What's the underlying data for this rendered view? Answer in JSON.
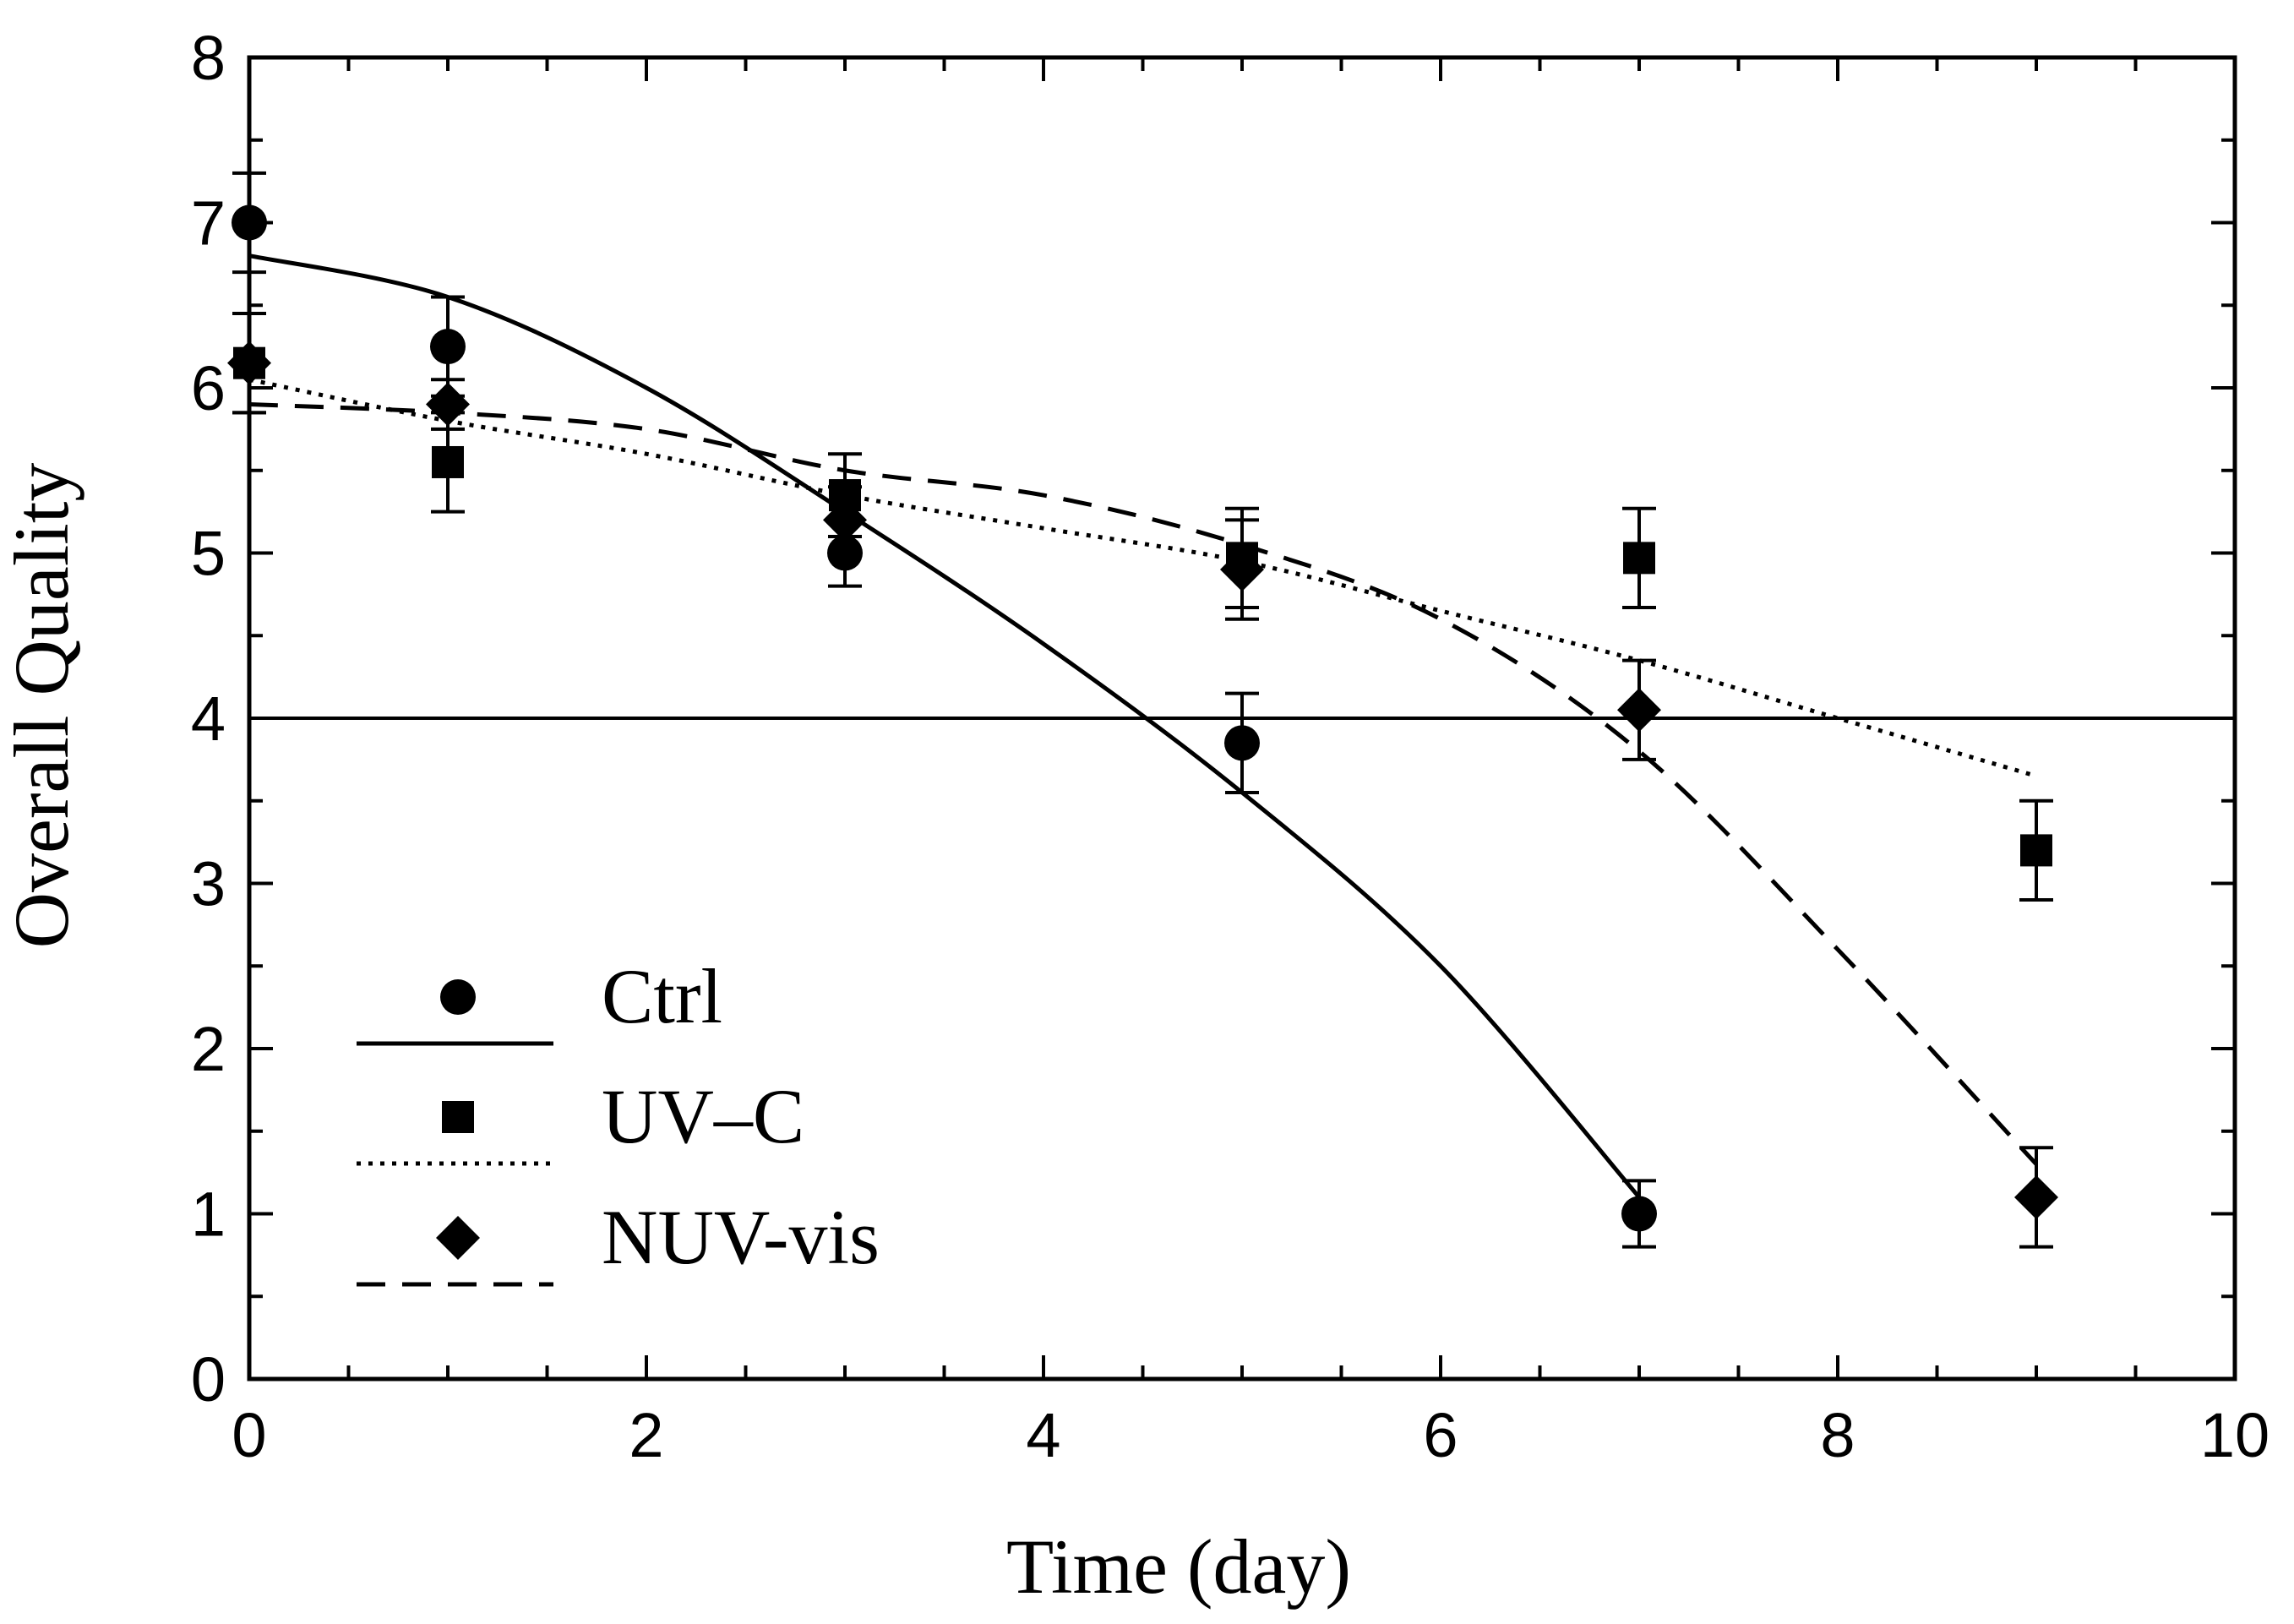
{
  "chart_data": {
    "type": "scatter",
    "xlabel": "Time (day)",
    "ylabel": "Overall Quality",
    "xlim": [
      0,
      10
    ],
    "ylim": [
      0,
      8
    ],
    "xticks": [
      0,
      2,
      4,
      6,
      8,
      10
    ],
    "yticks": [
      0,
      1,
      2,
      3,
      4,
      5,
      6,
      7,
      8
    ],
    "grid": false,
    "legend_position": "bottom-left",
    "reference_line": {
      "y": 4
    },
    "series": [
      {
        "name": "Ctrl",
        "marker": "circle",
        "line_style": "solid",
        "points": [
          {
            "x": 0,
            "y": 7.0,
            "err": 0.3
          },
          {
            "x": 1,
            "y": 6.25,
            "err": 0.3
          },
          {
            "x": 3,
            "y": 5.0,
            "err": 0.2
          },
          {
            "x": 5,
            "y": 3.85,
            "err": 0.3
          },
          {
            "x": 7,
            "y": 1.0,
            "err": 0.2
          }
        ],
        "fit": [
          [
            0,
            6.8
          ],
          [
            1,
            6.55
          ],
          [
            2,
            6.0
          ],
          [
            3,
            5.25
          ],
          [
            4,
            4.45
          ],
          [
            5,
            3.55
          ],
          [
            6,
            2.5
          ],
          [
            7,
            1.1
          ]
        ]
      },
      {
        "name": "UV–C",
        "marker": "square",
        "line_style": "dotted",
        "points": [
          {
            "x": 0,
            "y": 6.15,
            "err": 0.3
          },
          {
            "x": 1,
            "y": 5.55,
            "err": 0.3
          },
          {
            "x": 3,
            "y": 5.35,
            "err": 0.25
          },
          {
            "x": 5,
            "y": 4.97,
            "err": 0.3
          },
          {
            "x": 7,
            "y": 4.97,
            "err": 0.3
          },
          {
            "x": 9,
            "y": 3.2,
            "err": 0.3
          }
        ],
        "fit": [
          [
            0,
            6.05
          ],
          [
            1,
            5.8
          ],
          [
            2,
            5.6
          ],
          [
            3,
            5.35
          ],
          [
            4,
            5.15
          ],
          [
            5,
            4.95
          ],
          [
            6,
            4.65
          ],
          [
            7,
            4.35
          ],
          [
            8,
            4.0
          ],
          [
            9,
            3.65
          ]
        ]
      },
      {
        "name": "NUV-vis",
        "marker": "diamond",
        "line_style": "dashed",
        "points": [
          {
            "x": 0,
            "y": 6.15,
            "err": 0.3
          },
          {
            "x": 1,
            "y": 5.9,
            "err": 0.15
          },
          {
            "x": 3,
            "y": 5.2,
            "err": 0.2
          },
          {
            "x": 5,
            "y": 4.9,
            "err": 0.3
          },
          {
            "x": 7,
            "y": 4.05,
            "err": 0.3
          },
          {
            "x": 9,
            "y": 1.1,
            "err": 0.3
          }
        ],
        "fit": [
          [
            0,
            5.9
          ],
          [
            1,
            5.85
          ],
          [
            2,
            5.75
          ],
          [
            3,
            5.5
          ],
          [
            4,
            5.35
          ],
          [
            5,
            5.05
          ],
          [
            6,
            4.6
          ],
          [
            7,
            3.8
          ],
          [
            8,
            2.6
          ],
          [
            9,
            1.3
          ]
        ]
      }
    ]
  }
}
